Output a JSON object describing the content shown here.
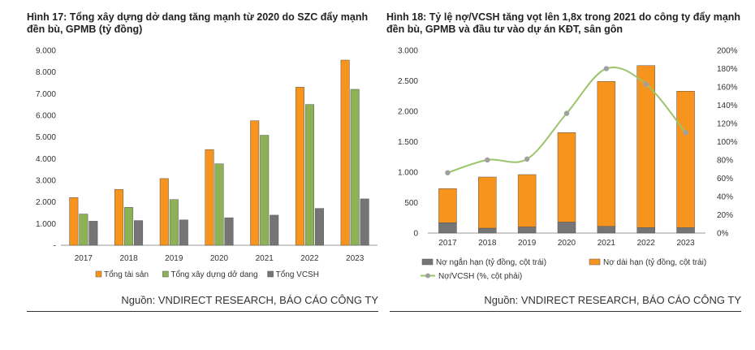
{
  "left": {
    "title": "Hình 17: Tổng xây dựng dở dang tăng mạnh từ 2020 do SZC đẩy mạnh đền bù, GPMB (tỷ đồng)",
    "source": "Nguồn: VNDIRECT RESEARCH, BÁO CÁO CÔNG TY"
  },
  "right": {
    "title": "Hình 18: Tỷ lệ nợ/VCSH tăng vọt lên 1,8x trong 2021 do công ty đẩy mạnh đền bù, GPMB và đầu tư vào dự án KĐT, sân gôn",
    "source": "Nguồn: VNDIRECT RESEARCH, BÁO CÁO CÔNG TY"
  },
  "chart_data": [
    {
      "type": "bar",
      "categories": [
        "2017",
        "2018",
        "2019",
        "2020",
        "2021",
        "2022",
        "2023"
      ],
      "series": [
        {
          "name": "Tổng tài sản",
          "color": "#F7941D",
          "values": [
            2200,
            2580,
            3080,
            4420,
            5750,
            7300,
            8550
          ]
        },
        {
          "name": "Tổng xây dựng dở dang",
          "color": "#8DB255",
          "values": [
            1440,
            1750,
            2110,
            3760,
            5080,
            6500,
            7200
          ]
        },
        {
          "name": "Tổng VCSH",
          "color": "#757575",
          "values": [
            1110,
            1140,
            1170,
            1270,
            1390,
            1700,
            2140
          ]
        }
      ],
      "ylim": [
        0,
        9000
      ],
      "yticks": [
        0,
        1000,
        2000,
        3000,
        4000,
        5000,
        6000,
        7000,
        8000,
        9000
      ],
      "ytick_labels": [
        "-",
        "1.000",
        "2.000",
        "3.000",
        "4.000",
        "5.000",
        "6.000",
        "7.000",
        "8.000",
        "9.000"
      ],
      "grid": false,
      "legend_position": "bottom"
    },
    {
      "type": "bar",
      "stacked": true,
      "categories": [
        "2017",
        "2018",
        "2019",
        "2020",
        "2021",
        "2022",
        "2023"
      ],
      "series": [
        {
          "name": "Nợ ngắn hạn (tỷ đồng, cột trái)",
          "color": "#757575",
          "values": [
            170,
            80,
            100,
            180,
            110,
            90,
            90
          ]
        },
        {
          "name": "Nợ dài hạn (tỷ đồng, cột trái)",
          "color": "#F7941D",
          "values": [
            560,
            840,
            860,
            1470,
            2380,
            2660,
            2240
          ]
        }
      ],
      "line_series": {
        "name": "Nợ/VCSH (%, cột phải)",
        "color": "#9BC46B",
        "marker_color": "#A0A0A0",
        "values": [
          66,
          80,
          81,
          131,
          180,
          163,
          110
        ]
      },
      "ylim": [
        0,
        3000
      ],
      "yticks": [
        0,
        500,
        1000,
        1500,
        2000,
        2500,
        3000
      ],
      "ytick_labels": [
        "0",
        "500",
        "1.000",
        "1.500",
        "2.000",
        "2.500",
        "3.000"
      ],
      "y2lim": [
        0,
        200
      ],
      "y2ticks": [
        0,
        20,
        40,
        60,
        80,
        100,
        120,
        140,
        160,
        180,
        200
      ],
      "y2tick_labels": [
        "0%",
        "20%",
        "40%",
        "60%",
        "80%",
        "100%",
        "120%",
        "140%",
        "160%",
        "180%",
        "200%"
      ],
      "grid": false,
      "legend_position": "bottom"
    }
  ]
}
